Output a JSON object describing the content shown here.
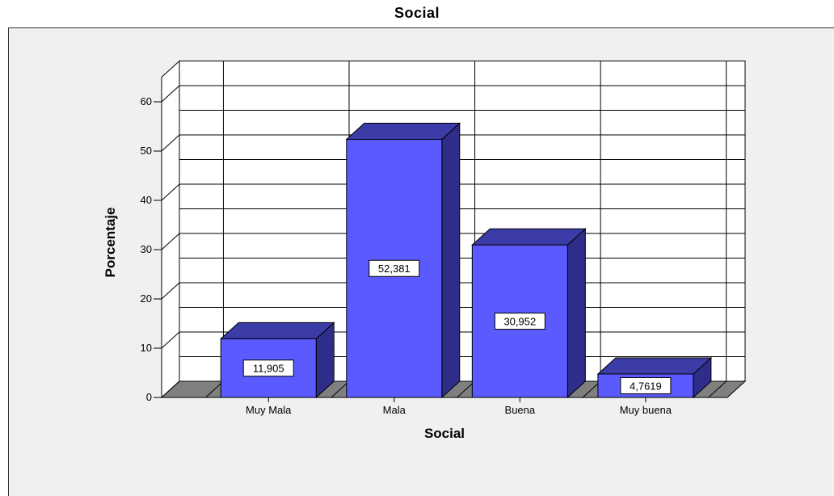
{
  "chart_data": {
    "type": "bar",
    "title": "Social",
    "xlabel": "Social",
    "ylabel": "Porcentaje",
    "categories": [
      "Muy Mala",
      "Mala",
      "Buena",
      "Muy buena"
    ],
    "values": [
      11.905,
      52.381,
      30.952,
      4.7619
    ],
    "value_labels": [
      "11,905",
      "52,381",
      "30,952",
      "4,7619"
    ],
    "yticks": [
      0,
      10,
      20,
      30,
      40,
      50,
      60
    ],
    "ylim": [
      0,
      65
    ],
    "grid": true,
    "style": "3d",
    "colors": {
      "bar_front": "#5a5aff",
      "bar_top": "#3c3ca8",
      "bar_side": "#2e2e8a",
      "wall": "#ffffff",
      "floor": "#808080",
      "background": "#f0f0f0"
    }
  }
}
